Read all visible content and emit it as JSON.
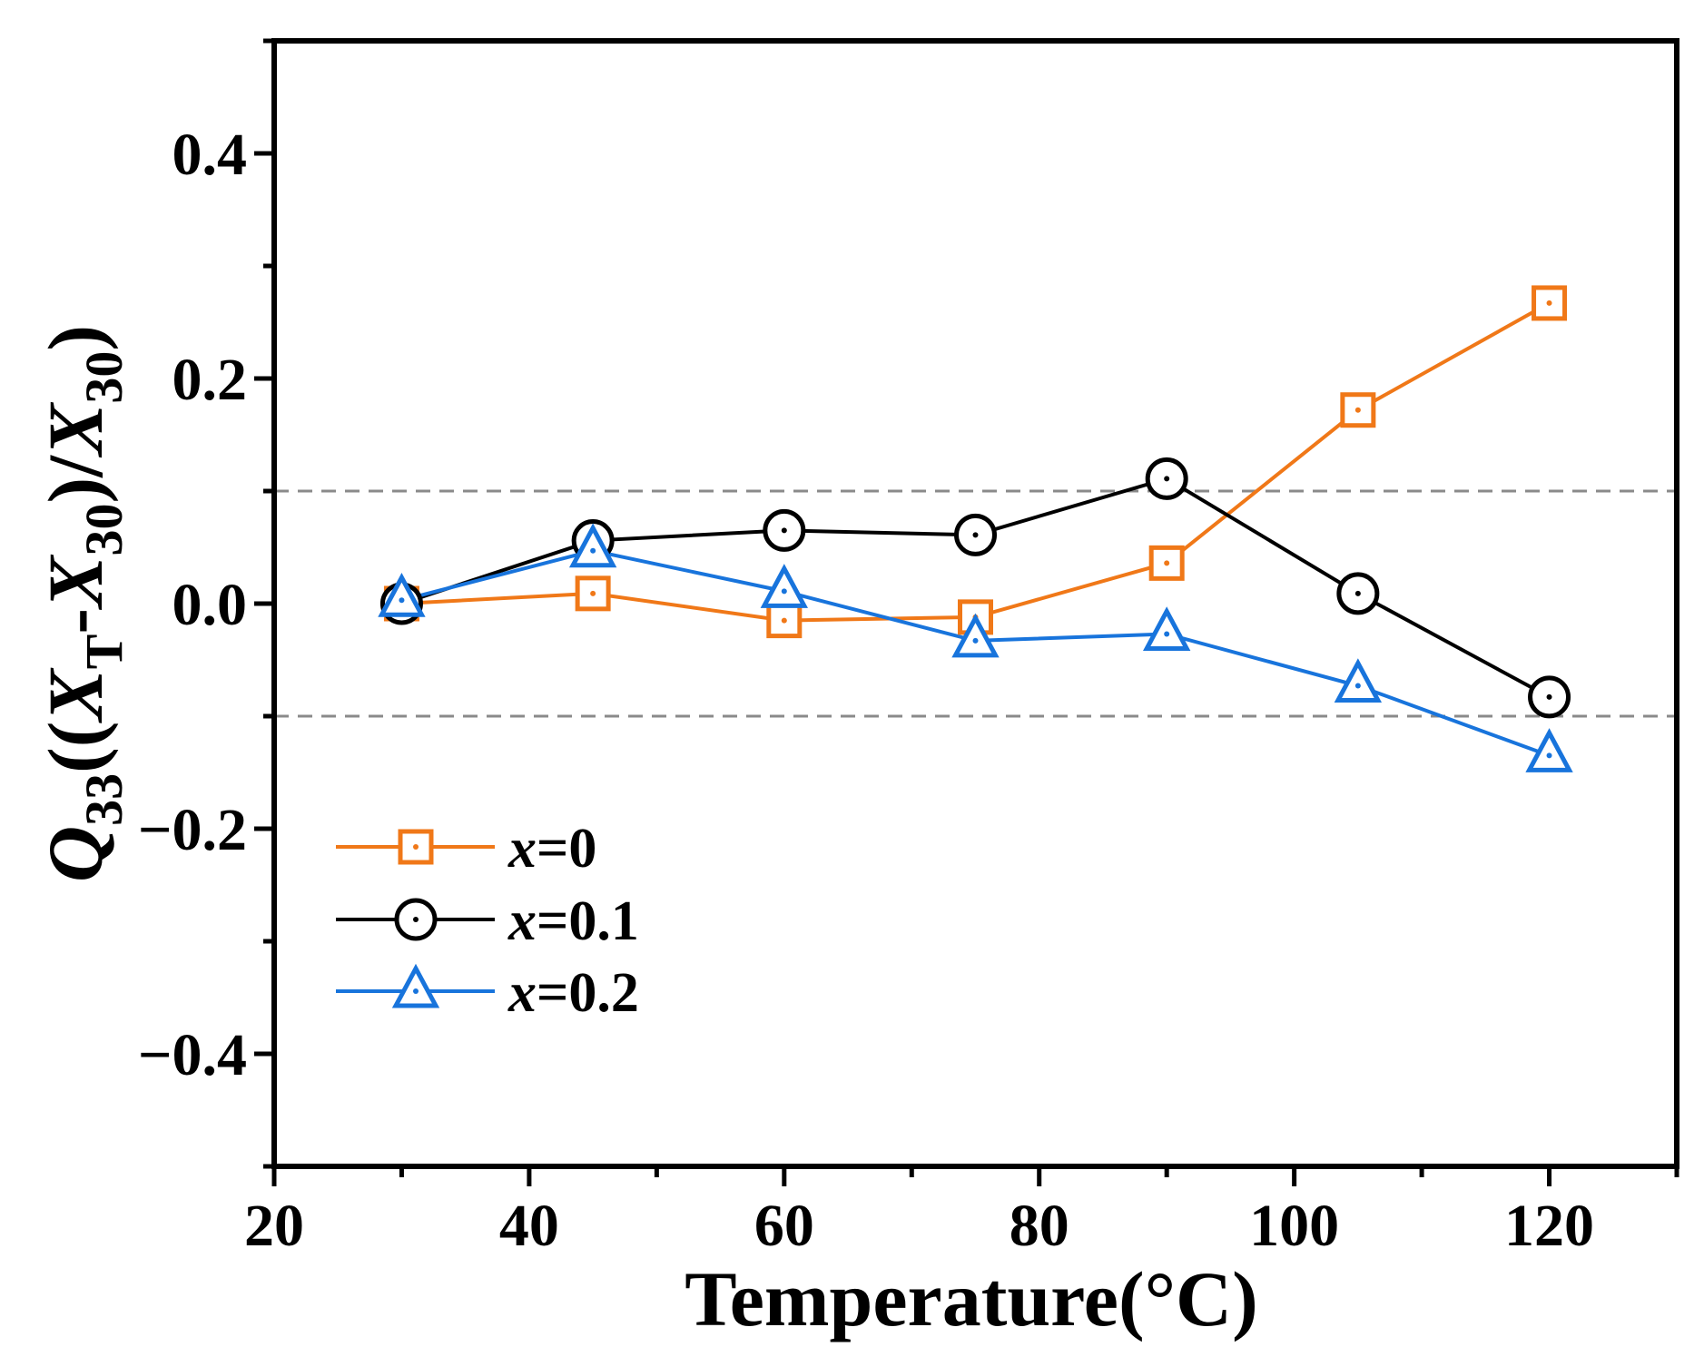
{
  "chart_data": {
    "type": "line",
    "title": "",
    "xlabel": "Temperature(°C)",
    "ylabel": {
      "q": "Q",
      "q_sub": "33",
      "open": "((",
      "xt": "X",
      "xt_sub": "T",
      "minus": "-",
      "x30": "X",
      "x30_sub": "30",
      "slash": ")/",
      "x30b": "X",
      "x30b_sub": "30",
      "close": ")"
    },
    "xlim": [
      20,
      130
    ],
    "ylim": [
      -0.5,
      0.5
    ],
    "x_ticks": [
      20,
      40,
      60,
      80,
      100,
      120
    ],
    "x_tick_labels": [
      "20",
      "40",
      "60",
      "80",
      "100",
      "120"
    ],
    "y_ticks": [
      -0.4,
      -0.2,
      0.0,
      0.2,
      0.4
    ],
    "y_tick_labels": [
      "−0.4",
      "−0.2",
      "0.0",
      "0.2",
      "0.4"
    ],
    "reference_lines": [
      0.1,
      -0.1
    ],
    "grid": false,
    "legend_position": "bottom-left",
    "x": [
      30,
      45,
      60,
      75,
      90,
      105,
      120
    ],
    "series": [
      {
        "name": "x=0",
        "var": "x",
        "eq": "=0",
        "marker": "square",
        "color": "#f07818",
        "values": [
          0.0,
          0.009,
          -0.015,
          -0.012,
          0.036,
          0.172,
          0.267
        ]
      },
      {
        "name": "x=0.1",
        "var": "x",
        "eq": "=0.1",
        "marker": "circle",
        "color": "#000000",
        "values": [
          0.0,
          0.056,
          0.065,
          0.061,
          0.111,
          0.009,
          -0.083
        ]
      },
      {
        "name": "x=0.2",
        "var": "x",
        "eq": "=0.2",
        "marker": "triangle",
        "color": "#1874dc",
        "values": [
          0.003,
          0.047,
          0.011,
          -0.033,
          -0.027,
          -0.073,
          -0.135
        ]
      }
    ]
  }
}
